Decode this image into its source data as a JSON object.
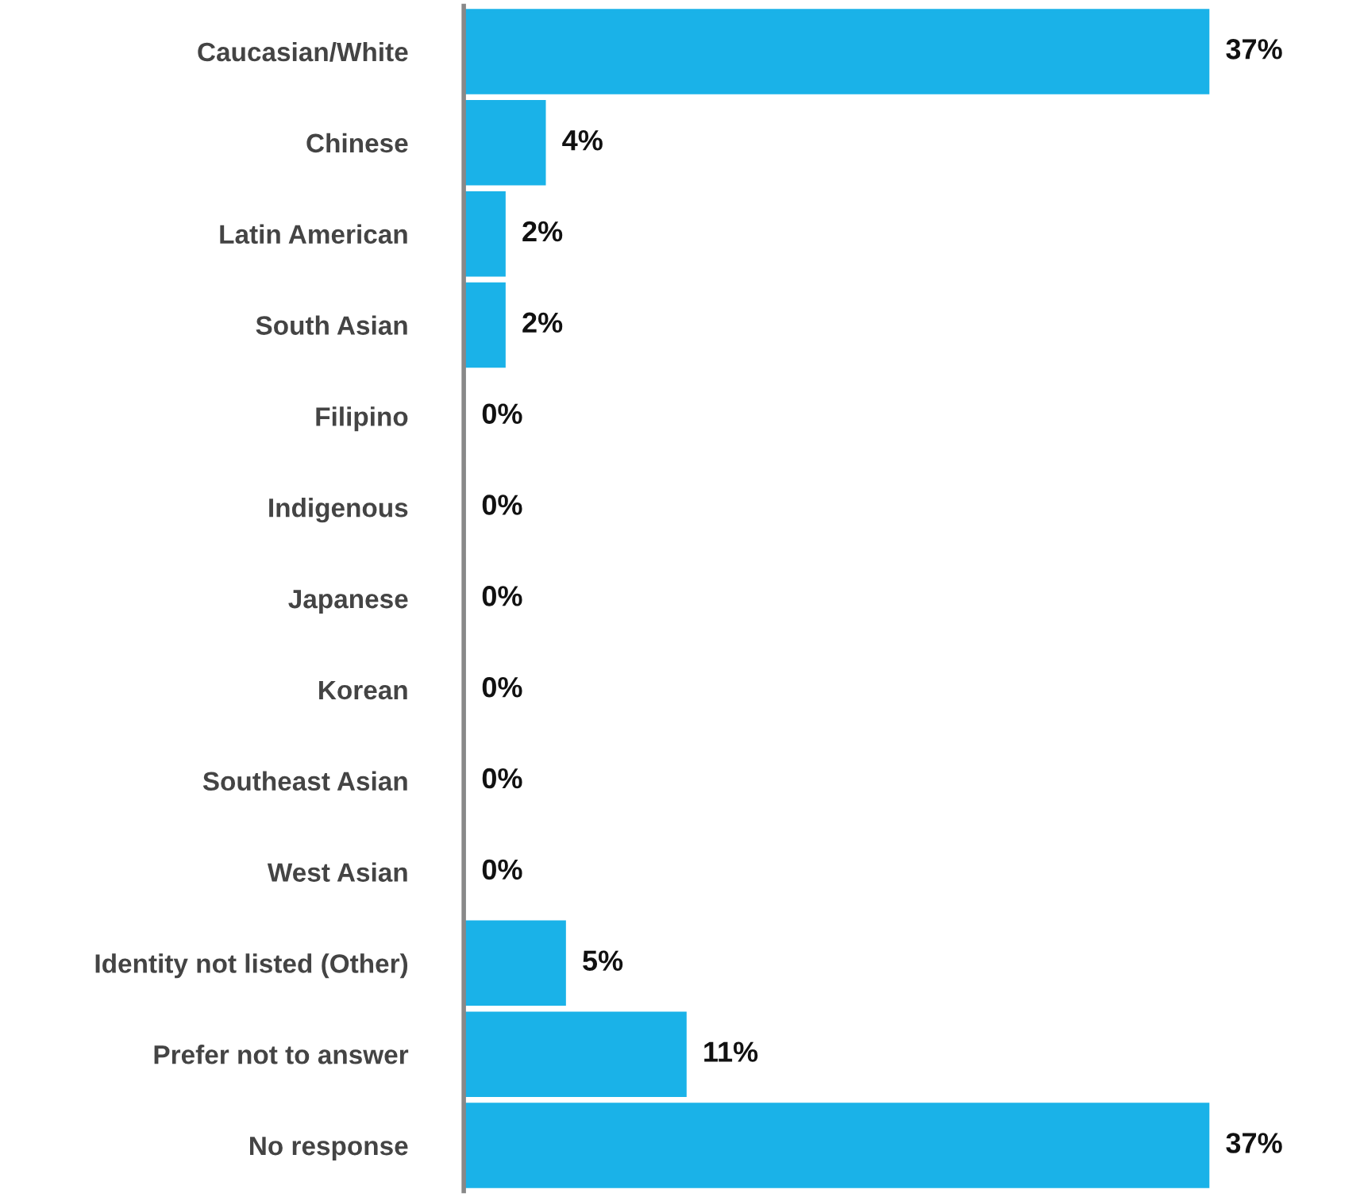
{
  "chart_data": {
    "type": "bar",
    "orientation": "horizontal",
    "categories": [
      "Caucasian/White",
      "Chinese",
      "Latin American",
      "South Asian",
      "Filipino",
      "Indigenous",
      "Japanese",
      "Korean",
      "Southeast Asian",
      "West Asian",
      "Identity not listed (Other)",
      "Prefer not to answer",
      "No response"
    ],
    "values": [
      37,
      4,
      2,
      2,
      0,
      0,
      0,
      0,
      0,
      0,
      5,
      11,
      37
    ],
    "value_labels": [
      "37%",
      "4%",
      "2%",
      "2%",
      "0%",
      "0%",
      "0%",
      "0%",
      "0%",
      "0%",
      "5%",
      "11%",
      "37%"
    ],
    "color": "#1ab2e8",
    "tick_labels": "y",
    "grid": false,
    "legend": false
  }
}
